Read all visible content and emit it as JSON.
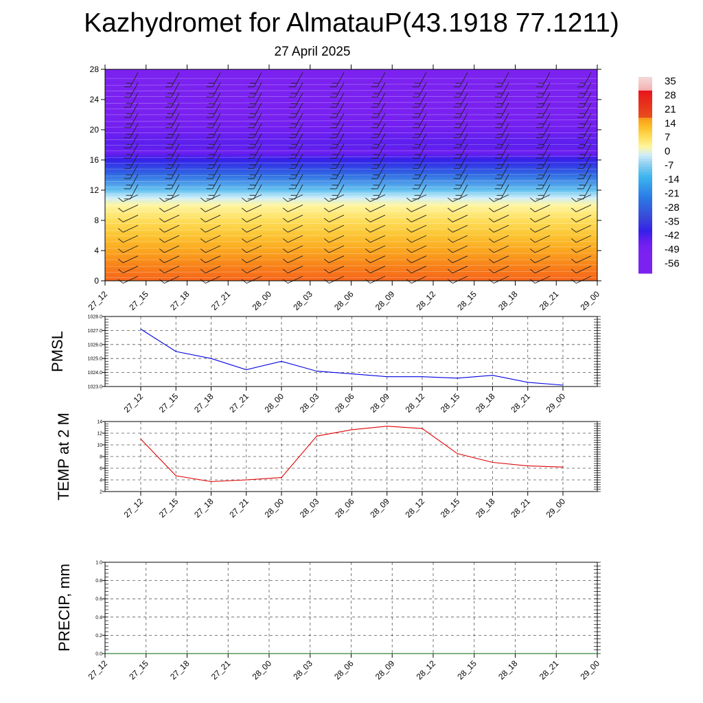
{
  "title": "Kazhydromet for AlmatauP(43.1918 77.1211)",
  "subtitle": "27 April 2025",
  "time_labels": [
    "27_12",
    "27_15",
    "27_18",
    "27_21",
    "28_00",
    "28_03",
    "28_06",
    "28_09",
    "28_12",
    "28_15",
    "28_18",
    "28_21",
    "29_00"
  ],
  "chart_data": [
    {
      "type": "heatmap",
      "panel": "temperature-wind cross section",
      "x": [
        "27_12",
        "27_15",
        "27_18",
        "27_21",
        "28_00",
        "28_03",
        "28_06",
        "28_09",
        "28_12",
        "28_15",
        "28_18",
        "28_21",
        "29_00"
      ],
      "y_ticks": [
        0,
        4,
        8,
        12,
        16,
        20,
        24,
        28
      ],
      "ylim": [
        0,
        28
      ],
      "colorbar": {
        "labels": [
          "35",
          "28",
          "21",
          "14",
          "7",
          "0",
          "-7",
          "-14",
          "-21",
          "-28",
          "-35",
          "-42",
          "-49",
          "-56"
        ],
        "colors": [
          "#f4c1c1",
          "#e8151c",
          "#f7641a",
          "#fba01c",
          "#fdd040",
          "#fff38f",
          "#c6ecf8",
          "#3db4ef",
          "#2b7be6",
          "#3a49d8",
          "#3421e8",
          "#7b22f0"
        ]
      },
      "levels": [
        0,
        2,
        4,
        6,
        8,
        10,
        11,
        12,
        14,
        16,
        17,
        18,
        20,
        22,
        28
      ],
      "values_c": [
        10,
        7,
        3,
        -1,
        -5,
        -10,
        -14,
        -22,
        -38,
        -52,
        -58,
        -56,
        -59,
        -62,
        -63
      ],
      "wind_barbs": true
    },
    {
      "type": "line",
      "panel": "pmsl",
      "ylabel": "PMSL",
      "x": [
        "27_12",
        "27_15",
        "27_18",
        "27_21",
        "28_00",
        "28_03",
        "28_06",
        "28_09",
        "28_12",
        "28_15",
        "28_18",
        "28_21",
        "29_00"
      ],
      "values": [
        1027.1,
        1025.5,
        1025.0,
        1024.2,
        1024.8,
        1024.1,
        1023.9,
        1023.7,
        1023.7,
        1023.6,
        1023.8,
        1023.3,
        1023.1
      ],
      "y_ticks": [
        "1023.0",
        "1024.0",
        "1025.0",
        "1026.0",
        "1027.0",
        "1028.0"
      ],
      "ylim": [
        1023,
        1028
      ],
      "color": "#0000e0",
      "grid": true
    },
    {
      "type": "line",
      "panel": "temp-2m",
      "ylabel": "TEMP at 2 M",
      "x": [
        "27_12",
        "27_15",
        "27_18",
        "27_21",
        "28_00",
        "28_03",
        "28_06",
        "28_09",
        "28_12",
        "28_15",
        "28_18",
        "28_21",
        "29_00"
      ],
      "values": [
        11.0,
        4.7,
        3.7,
        4.0,
        4.4,
        11.5,
        12.6,
        13.2,
        12.8,
        8.5,
        7.0,
        6.4,
        6.2
      ],
      "y_ticks": [
        "2",
        "4",
        "6",
        "8",
        "10",
        "12",
        "14"
      ],
      "ylim": [
        2,
        14
      ],
      "color": "#e00000",
      "grid": true
    },
    {
      "type": "line",
      "panel": "precip",
      "ylabel": "PRECIP, mm",
      "x": [
        "27_12",
        "27_15",
        "27_18",
        "27_21",
        "28_00",
        "28_03",
        "28_06",
        "28_09",
        "28_12",
        "28_15",
        "28_18",
        "28_21",
        "29_00"
      ],
      "values": [
        0,
        0,
        0,
        0,
        0,
        0,
        0,
        0,
        0,
        0,
        0,
        0,
        0
      ],
      "y_ticks": [
        "0.0",
        "0.2",
        "0.4",
        "0.6",
        "0.8",
        "1.0"
      ],
      "ylim": [
        0,
        1
      ],
      "color": "#006400",
      "grid": true
    }
  ]
}
